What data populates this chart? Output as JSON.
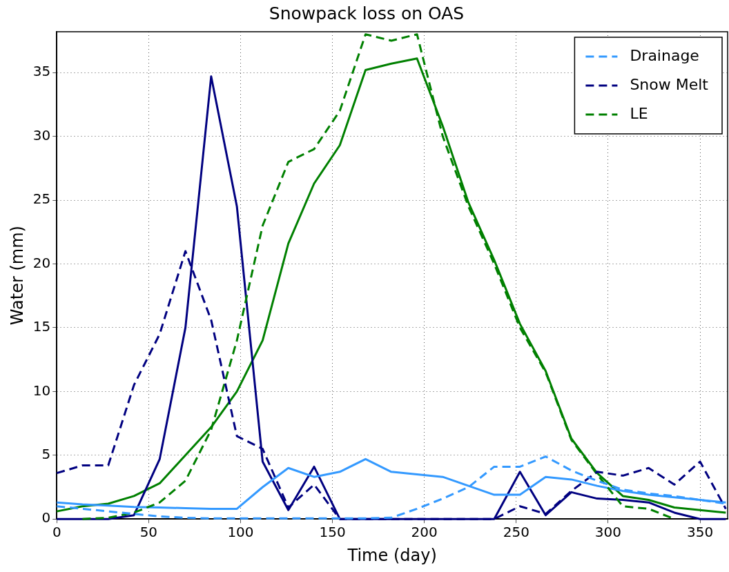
{
  "chart_data": {
    "type": "line",
    "title": "Snowpack loss on OAS",
    "xlabel": "Time (day)",
    "ylabel": "Water (mm)",
    "x": [
      0,
      14,
      28,
      42,
      56,
      70,
      84,
      98,
      112,
      126,
      140,
      154,
      168,
      182,
      196,
      210,
      224,
      238,
      252,
      266,
      280,
      294,
      308,
      322,
      336,
      350,
      364
    ],
    "xlim": [
      0,
      365
    ],
    "xticks": [
      0,
      50,
      100,
      150,
      200,
      250,
      300,
      350
    ],
    "ylim": [
      0,
      38.2
    ],
    "yticks": [
      0,
      5,
      10,
      15,
      20,
      25,
      30,
      35
    ],
    "grid": true,
    "legend": "top right",
    "marker": "none",
    "series": [
      {
        "name": "Drainage",
        "color": "#3399ff",
        "line_style": "dashed",
        "values": [
          1.0,
          0.8,
          0.6,
          0.4,
          0.2,
          0.1,
          0.05,
          0.05,
          0.05,
          0.05,
          0.05,
          0.05,
          0.05,
          0.1,
          0.8,
          1.6,
          2.5,
          4.1,
          4.1,
          4.9,
          3.8,
          3.0,
          2.3,
          2.0,
          1.8,
          1.5,
          1.2
        ]
      },
      {
        "name": "Snow Melt",
        "color": "#000080",
        "line_style": "dashed",
        "values": [
          3.6,
          4.2,
          4.2,
          10.5,
          14.5,
          21,
          15.6,
          6.5,
          5.5,
          0.9,
          2.7,
          0,
          0,
          0,
          0,
          0,
          0,
          0,
          1.0,
          0.4,
          2.2,
          3.7,
          3.4,
          4.0,
          2.7,
          4.5,
          0.8
        ]
      },
      {
        "name": "LE",
        "color": "#008000",
        "line_style": "dashed",
        "values": [
          null,
          0,
          0.1,
          0.5,
          1.3,
          3.0,
          7.0,
          14,
          23,
          28,
          29,
          32,
          38,
          37.5,
          38,
          30,
          24.5,
          20,
          15,
          11.5,
          6.2,
          3.5,
          1.0,
          0.8,
          0,
          null,
          null
        ]
      },
      {
        "color": "#3399ff",
        "line_style": "solid",
        "values": [
          1.3,
          1.15,
          1.05,
          0.95,
          0.9,
          0.85,
          0.8,
          0.8,
          2.5,
          4.0,
          3.3,
          3.7,
          4.7,
          3.7,
          3.5,
          3.3,
          2.6,
          1.9,
          1.9,
          3.3,
          3.1,
          2.6,
          2.2,
          1.9,
          1.7,
          1.5,
          1.3
        ]
      },
      {
        "color": "#000080",
        "line_style": "solid",
        "values": [
          0,
          0,
          0,
          0.3,
          4.7,
          15,
          34.7,
          24.5,
          4.5,
          0.7,
          4.1,
          0,
          0,
          0,
          0,
          0,
          0,
          0,
          3.7,
          0.3,
          2.1,
          1.6,
          1.5,
          1.3,
          0.5,
          0,
          0
        ]
      },
      {
        "color": "#008000",
        "line_style": "solid",
        "values": [
          0.6,
          1.0,
          1.2,
          1.8,
          2.8,
          5,
          7.2,
          10,
          14,
          21.6,
          26.3,
          29.3,
          35.2,
          35.7,
          36.1,
          30.8,
          24.8,
          20.3,
          15.3,
          11.6,
          6.3,
          3.6,
          1.8,
          1.5,
          0.9,
          0.7,
          0.5
        ]
      }
    ]
  }
}
